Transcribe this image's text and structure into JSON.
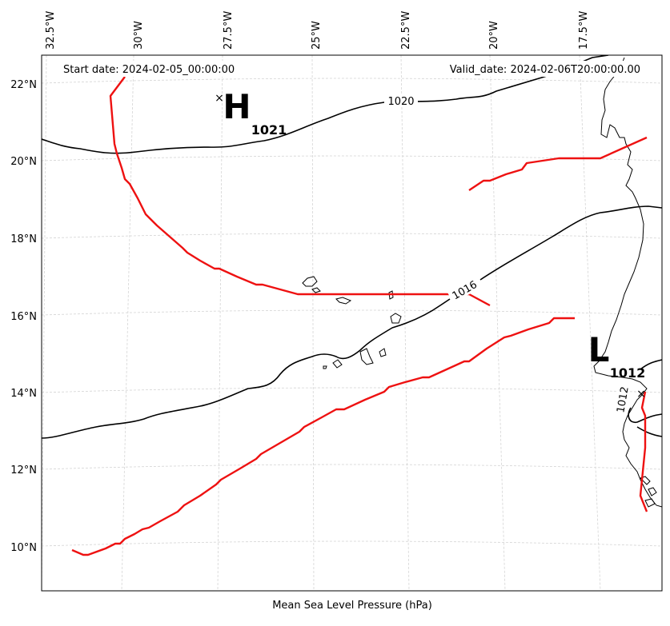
{
  "header": {
    "start_date": "Start date: 2024-02-05_00:00:00",
    "valid_date": "Valid_date: 2024-02-06T20:00:00.00"
  },
  "caption": "Mean Sea Level Pressure (hPa)",
  "longitude_labels": [
    "32.5°W",
    "30°W",
    "27.5°W",
    "25°W",
    "22.5°W",
    "20°W",
    "17.5°W"
  ],
  "latitude_labels": [
    "22°N",
    "20°N",
    "18°N",
    "16°N",
    "14°N",
    "12°N",
    "10°N"
  ],
  "contour_labels": [
    "1020",
    "1016",
    "1012"
  ],
  "pressure_centers": [
    {
      "letter": "H",
      "value": "1021",
      "marker": "×"
    },
    {
      "letter": "L",
      "value": "1012",
      "marker": "×"
    }
  ],
  "colors": {
    "isobar": "#000000",
    "front": "#ff0000",
    "gridline": "#cccccc",
    "coastline": "#000000"
  }
}
